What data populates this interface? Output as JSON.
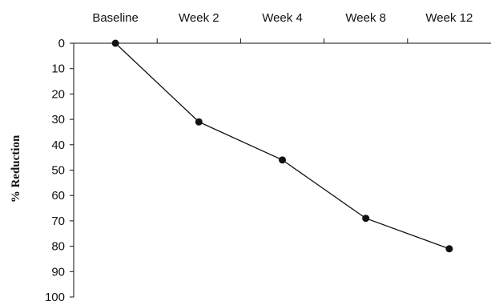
{
  "chart_data": {
    "type": "line",
    "title": "",
    "xlabel": "",
    "ylabel": "% Reduction",
    "categories": [
      "Baseline",
      "Week 2",
      "Week 4",
      "Week 8",
      "Week 12"
    ],
    "series": [
      {
        "values": [
          0,
          31,
          46,
          69,
          81
        ]
      }
    ],
    "ylim": [
      0,
      100
    ],
    "y_ticks": [
      0,
      10,
      20,
      30,
      40,
      50,
      60,
      70,
      80,
      90,
      100
    ],
    "y_axis_inverted": true,
    "x_axis_position": "top",
    "grid": false,
    "colors": {
      "line": "#111111",
      "marker": "#111111",
      "axis": "#111111"
    }
  }
}
